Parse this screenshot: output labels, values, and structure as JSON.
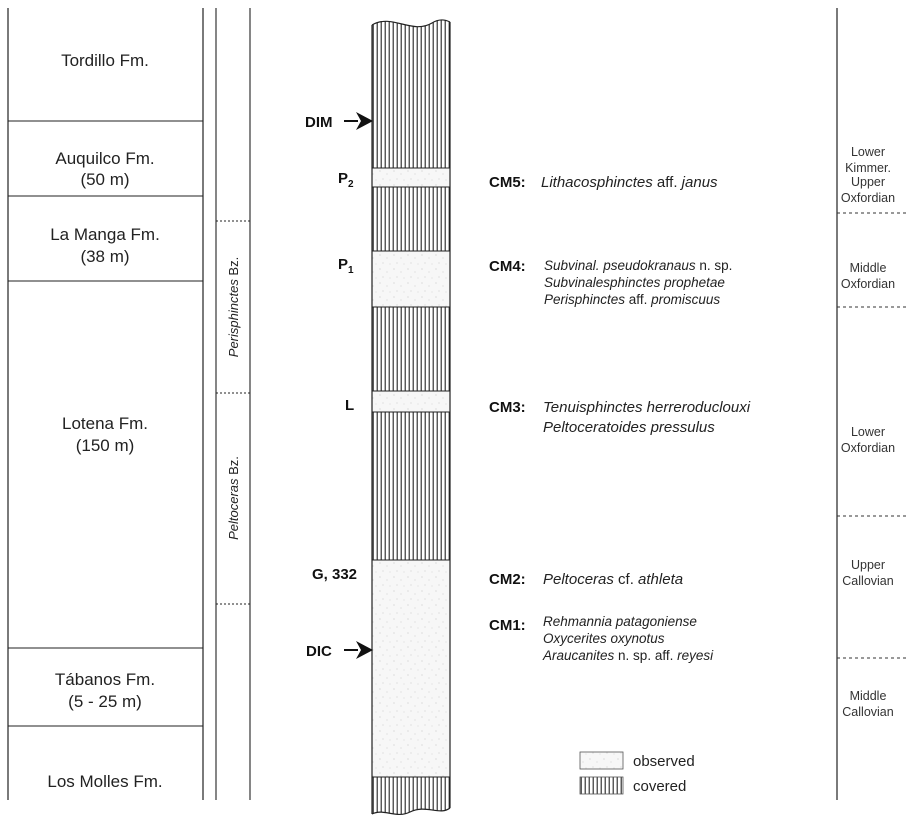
{
  "formations": [
    {
      "name": "Tordillo Fm.",
      "thickness": ""
    },
    {
      "name": "Auquilco Fm.",
      "thickness": "(50 m)"
    },
    {
      "name": "La Manga Fm.",
      "thickness": "(38 m)"
    },
    {
      "name": "Lotena Fm.",
      "thickness": "(150 m)"
    },
    {
      "name": "Tábanos Fm.",
      "thickness": "(5 - 25 m)"
    },
    {
      "name": "Los Molles Fm.",
      "thickness": ""
    }
  ],
  "biozones": [
    {
      "italic": "Perisphinctes",
      "suffix": " Bz."
    },
    {
      "italic": "Peltoceras",
      "suffix": " Bz."
    }
  ],
  "markers": {
    "dim": "DIM",
    "dic": "DIC"
  },
  "levels": [
    {
      "base": "P",
      "sub": "2"
    },
    {
      "base": "P",
      "sub": "1"
    },
    {
      "base": "L",
      "sub": ""
    },
    {
      "base": "G, 332",
      "sub": ""
    }
  ],
  "assemblages": [
    {
      "code": "CM5:",
      "taxa": [
        [
          {
            "t": "Lithacosphinctes",
            "i": true
          },
          {
            "t": " aff. ",
            "i": false
          },
          {
            "t": "janus",
            "i": true
          }
        ]
      ]
    },
    {
      "code": "CM4:",
      "taxa": [
        [
          {
            "t": "Subvinal. pseudokranaus",
            "i": true
          },
          {
            "t": " n. sp.",
            "i": false
          }
        ],
        [
          {
            "t": "Subvinalesphinctes prophetae",
            "i": true
          }
        ],
        [
          {
            "t": "Perisphinctes",
            "i": true
          },
          {
            "t": " aff. ",
            "i": false
          },
          {
            "t": "promiscuus",
            "i": true
          }
        ]
      ]
    },
    {
      "code": "CM3:",
      "taxa": [
        [
          {
            "t": "Tenuisphinctes herreroduclouxi",
            "i": true
          }
        ],
        [
          {
            "t": "Peltoceratoides pressulus",
            "i": true
          }
        ]
      ]
    },
    {
      "code": "CM2:",
      "taxa": [
        [
          {
            "t": "Peltoceras",
            "i": true
          },
          {
            "t": " cf. ",
            "i": false
          },
          {
            "t": "athleta",
            "i": true
          }
        ]
      ]
    },
    {
      "code": "CM1:",
      "taxa": [
        [
          {
            "t": "Rehmannia patagoniense",
            "i": true
          }
        ],
        [
          {
            "t": "Oxycerites oxynotus",
            "i": true
          }
        ],
        [
          {
            "t": "Araucanites",
            "i": true
          },
          {
            "t": " n. sp. aff. ",
            "i": false
          },
          {
            "t": "reyesi",
            "i": true
          }
        ]
      ]
    }
  ],
  "stages": [
    [
      "Lower",
      "Kimmer."
    ],
    [
      "Upper",
      "Oxfordian"
    ],
    [
      "Middle",
      "Oxfordian"
    ],
    [
      "Lower",
      "Oxfordian"
    ],
    [
      "Upper",
      "Callovian"
    ],
    [
      "Middle",
      "Callovian"
    ]
  ],
  "legend": {
    "observed": "observed",
    "covered": "covered"
  },
  "colors": {
    "line": "#222222",
    "observed_fill": "#f6f6f6",
    "observed_speckle": "#bdbdbd"
  }
}
